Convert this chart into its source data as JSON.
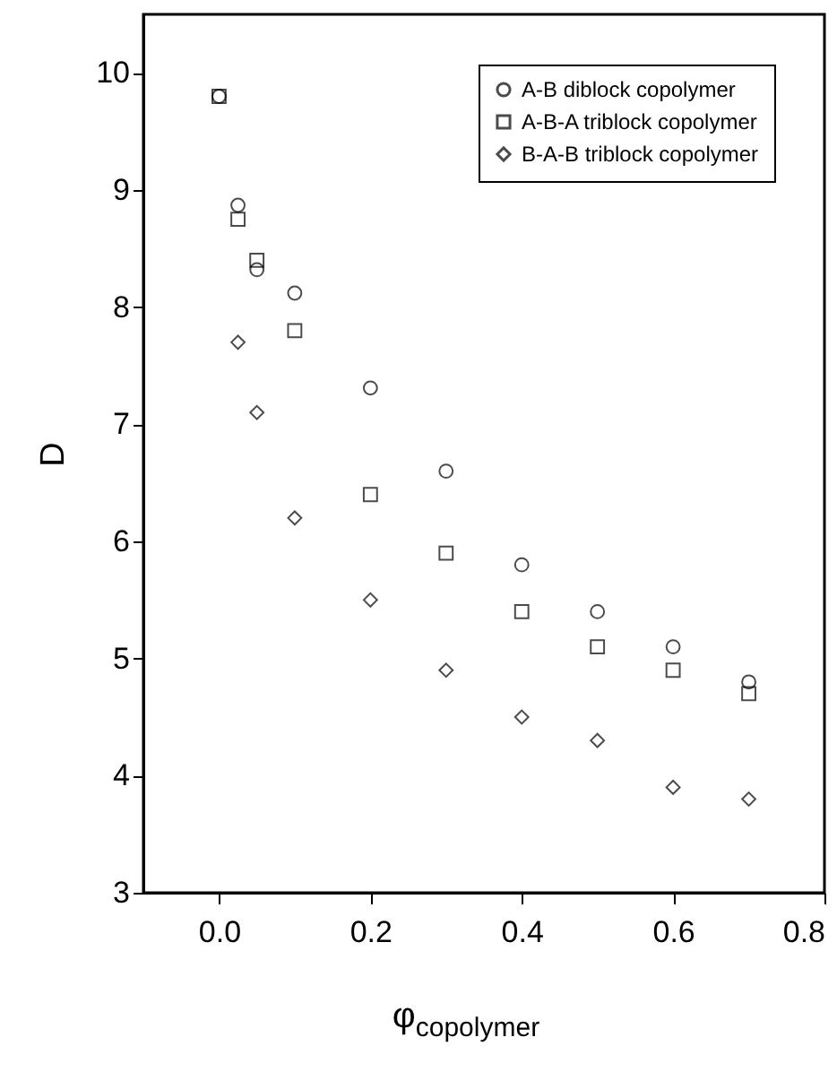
{
  "chart_data": {
    "type": "scatter",
    "xlabel": "φ$_{copolymer}$",
    "ylabel": "D",
    "x": [
      0,
      0.025,
      0.05,
      0.1,
      0.2,
      0.3,
      0.4,
      0.5,
      0.6,
      0.7
    ],
    "series": [
      {
        "name": "A-B diblock copolymer",
        "color": "#000000",
        "marker": "circle",
        "values": [
          9.8,
          8.87,
          8.32,
          8.12,
          7.31,
          6.6,
          5.8,
          5.4,
          5.1,
          4.8
        ]
      },
      {
        "name": "A-B-A triblock copolymer",
        "color": "#000000",
        "marker": "square",
        "values": [
          9.8,
          8.75,
          8.4,
          7.8,
          6.4,
          5.9,
          5.4,
          5.1,
          4.9,
          4.7
        ]
      },
      {
        "name": "B-A-B triblock copolymer",
        "color": "#000000",
        "marker": "diamond",
        "values": [
          null,
          7.7,
          7.1,
          6.2,
          5.5,
          4.9,
          4.5,
          4.3,
          3.9,
          3.8
        ]
      }
    ],
    "xlim": [
      -0.1,
      0.8
    ],
    "xticks": [
      {
        "value": 0,
        "label": "0.0"
      },
      0.2,
      0.4,
      0.6,
      0.8
    ],
    "ylim": [
      3,
      10.5
    ],
    "yticks": [
      3,
      4,
      5,
      6,
      7,
      8,
      9,
      10
    ],
    "legend": "top right",
    "grid": false
  }
}
